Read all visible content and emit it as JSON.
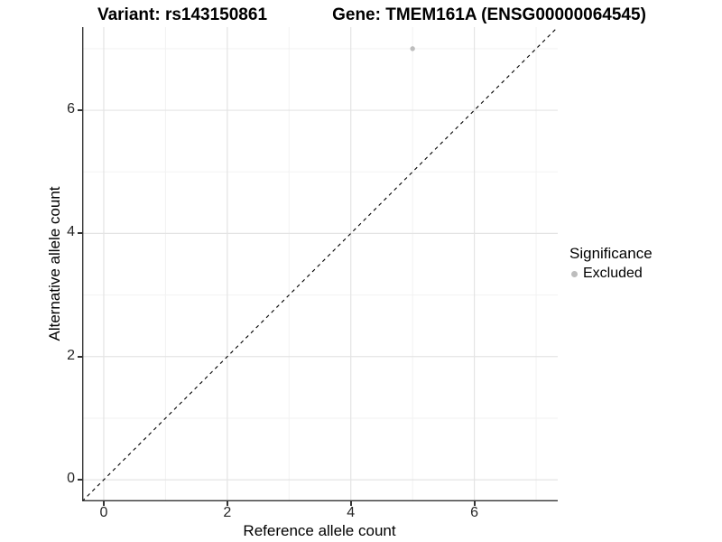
{
  "colors": {
    "background": "#ffffff",
    "grid_major": "#e4e4e4",
    "grid_minor": "#f2f2f2",
    "axis_line": "#333333",
    "tick_text": "#262626",
    "identity_line": "#000000",
    "point": "#bdbdbd"
  },
  "chart_data": {
    "type": "scatter",
    "title_left": "Variant: rs143150861",
    "title_right": "Gene: TMEM161A (ENSG00000064545)",
    "xlabel": "Reference allele count",
    "ylabel": "Alternative allele count",
    "xlim": [
      -0.35,
      7.35
    ],
    "ylim": [
      -0.35,
      7.35
    ],
    "x_major_ticks": [
      0,
      2,
      4,
      6
    ],
    "x_minor_ticks": [
      1,
      3,
      5,
      7
    ],
    "y_major_ticks": [
      0,
      2,
      4,
      6
    ],
    "y_minor_ticks": [
      1,
      3,
      5,
      7
    ],
    "grid": true,
    "identity_line": {
      "style": "dashed",
      "x1": -0.35,
      "y1": -0.35,
      "x2": 7.35,
      "y2": 7.35
    },
    "series": [
      {
        "name": "Excluded",
        "color": "#bdbdbd",
        "points": [
          {
            "x": 5,
            "y": 7
          }
        ]
      }
    ],
    "legend": {
      "title": "Significance",
      "position": "right",
      "items": [
        {
          "label": "Excluded",
          "color": "#bdbdbd",
          "marker": "circle-icon"
        }
      ]
    }
  }
}
